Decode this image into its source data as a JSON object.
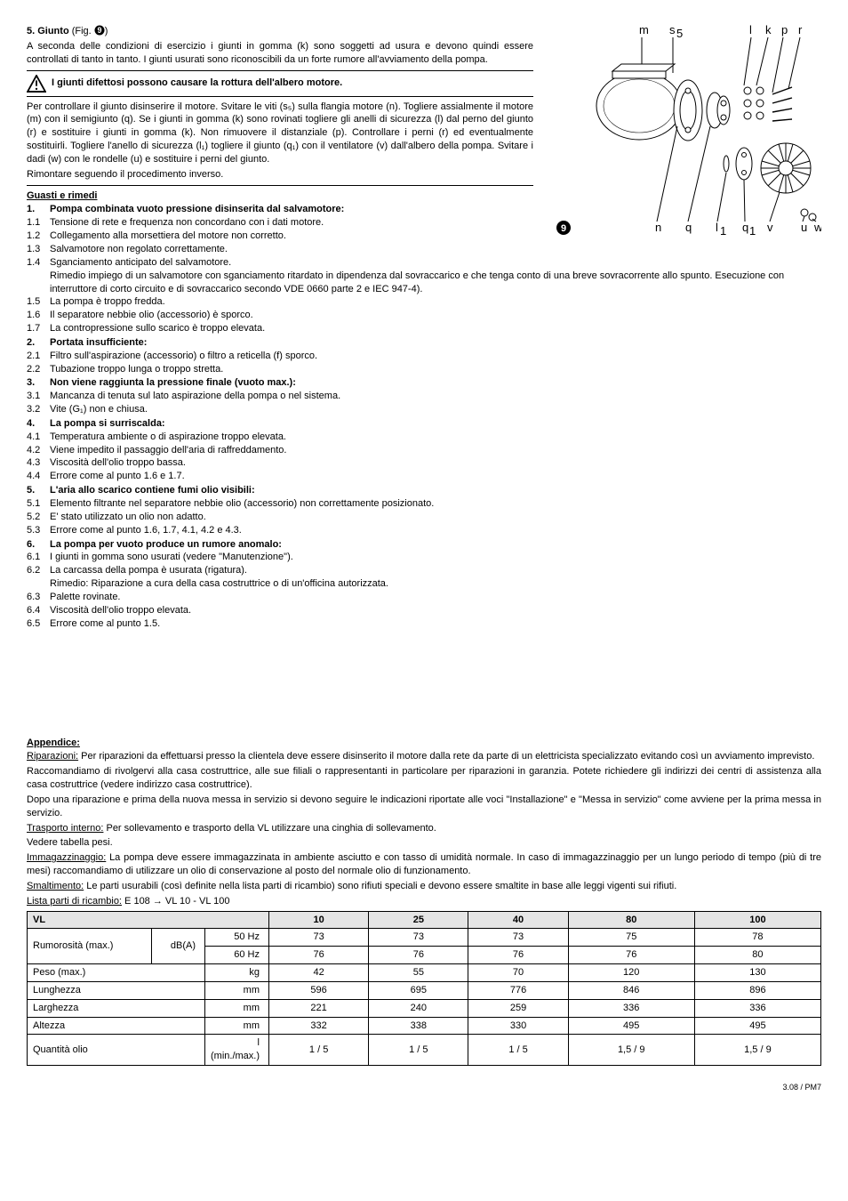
{
  "section5": {
    "title_prefix": "5. Giunto",
    "title_suffix": " (Fig. ",
    "fig_ref": "9",
    "title_close": ")",
    "p1": "A seconda delle condizioni di esercizio i giunti in gomma (k) sono soggetti ad usura e devono quindi essere controllati di tanto in tanto. I giunti usurati sono riconoscibili da un forte rumore all'avviamento della pompa.",
    "warn": "I giunti difettosi possono causare la rottura dell'albero motore.",
    "p2": "Per controllare il giunto disinserire il motore. Svitare le viti (s₅) sulla flangia motore (n). Togliere assialmente il motore (m) con il semigiunto (q). Se i giunti in gomma (k) sono rovinati togliere gli anelli di sicurezza (l) dal perno del giunto (r) e sostituire i giunti in gomma (k). Non rimuovere il distanziale (p). Controllare i perni (r) ed eventualmente sostituirli. Togliere l'anello di sicurezza (l₁) togliere il giunto (q₁) con il ventilatore (v) dall'albero della pompa. Svitare i dadi (w) con le rondelle (u) e sostituire i perni del giunto.",
    "p3": "Rimontare seguendo il procedimento inverso."
  },
  "guasti": {
    "head": "Guasti e rimedi",
    "items": [
      {
        "n": "1.",
        "t": "Pompa combinata vuoto pressione disinserita dal salvamotore:",
        "b": true
      },
      {
        "n": "1.1",
        "t": "Tensione di rete e frequenza non concordano con i dati motore."
      },
      {
        "n": "1.2",
        "t": "Collegamento alla morsettiera del motore non corretto."
      },
      {
        "n": "1.3",
        "t": "Salvamotore non regolato correttamente."
      },
      {
        "n": "1.4",
        "t": "Sganciamento anticipato del salvamotore."
      },
      {
        "n": "",
        "t": "Rimedio impiego di un salvamotore con sganciamento ritardato in dipendenza dal sovraccarico e che tenga conto di una breve sovracorrente allo spunto. Esecuzione con interruttore di corto circuito e di sovraccarico secondo VDE 0660 parte 2 e IEC 947-4)."
      },
      {
        "n": "1.5",
        "t": "La pompa è troppo fredda."
      },
      {
        "n": "1.6",
        "t": "Il separatore nebbie olio (accessorio) è sporco."
      },
      {
        "n": "1.7",
        "t": "La contropressione sullo scarico è troppo elevata."
      },
      {
        "n": "2.",
        "t": "Portata insufficiente:",
        "b": true
      },
      {
        "n": "2.1",
        "t": "Filtro sull'aspirazione (accessorio) o filtro a reticella (f) sporco."
      },
      {
        "n": "2.2",
        "t": "Tubazione troppo lunga o troppo stretta."
      },
      {
        "n": "3.",
        "t": "Non viene raggiunta la pressione finale (vuoto max.):",
        "b": true
      },
      {
        "n": "3.1",
        "t": "Mancanza di tenuta sul lato aspirazione della pompa o nel sistema."
      },
      {
        "n": "3.2",
        "t": "Vite (G₁) non e chiusa."
      },
      {
        "n": "4.",
        "t": "La pompa si surriscalda:",
        "b": true
      },
      {
        "n": "4.1",
        "t": "Temperatura ambiente o di aspirazione troppo elevata."
      },
      {
        "n": "4.2",
        "t": "Viene impedito il passaggio dell'aria di raffreddamento."
      },
      {
        "n": "4.3",
        "t": "Viscosità dell'olio troppo bassa."
      },
      {
        "n": "4.4",
        "t": "Errore come al punto 1.6 e 1.7."
      },
      {
        "n": "5.",
        "t": "L'aria allo scarico contiene fumi olio visibili:",
        "b": true
      },
      {
        "n": "5.1",
        "t": "Elemento filtrante nel separatore nebbie olio (accessorio) non correttamente posizionato."
      },
      {
        "n": "5.2",
        "t": "E' stato utilizzato un olio non adatto."
      },
      {
        "n": "5.3",
        "t": "Errore come al punto 1.6, 1.7, 4.1, 4.2 e 4.3."
      },
      {
        "n": "6.",
        "t": "La pompa per vuoto produce un rumore anomalo:",
        "b": true
      },
      {
        "n": "6.1",
        "t": "I giunti in gomma sono usurati (vedere \"Manutenzione\")."
      },
      {
        "n": "6.2",
        "t": "La carcassa della pompa è usurata (rigatura)."
      },
      {
        "n": "",
        "t": "Rimedio: Riparazione a cura della casa costruttrice o di un'officina autorizzata."
      },
      {
        "n": "6.3",
        "t": "Palette rovinate."
      },
      {
        "n": "6.4",
        "t": "Viscosità dell'olio troppo elevata."
      },
      {
        "n": "6.5",
        "t": "Errore come al punto 1.5."
      }
    ]
  },
  "appendix": {
    "head": "Appendice:",
    "rip_lbl": "Riparazioni:",
    "rip_t1": "  Per riparazioni da effettuarsi presso la clientela deve essere disinserito il motore dalla rete da parte di un elettricista specializzato evitando così un avviamento imprevisto.",
    "rip_t2": "Raccomandiamo di rivolgervi alla casa costruttrice, alle sue filiali o rappresentanti in particolare per riparazioni in garanzia. Potete richiedere gli indirizzi dei centri di assistenza alla casa costruttrice (vedere indirizzo casa costruttrice).",
    "rip_t3": "Dopo una riparazione e prima della nuova messa in servizio si devono seguire le indicazioni riportate alle voci \"Installazione\" e \"Messa in servizio\" come avviene per la prima messa in servizio.",
    "tra_lbl": "Trasporto interno:",
    "tra_t1": "  Per sollevamento e trasporto della VL utilizzare una cinghia di sollevamento.",
    "tra_t2": "Vedere tabella pesi.",
    "imm_lbl": "Immagazzinaggio:",
    "imm_t": "  La pompa deve essere immagazzinata in ambiente asciutto e con tasso di umidità normale. In caso di immagazzinaggio per un lungo periodo di tempo (più di tre mesi) raccomandiamo di utilizzare un olio di conservazione al posto del normale olio di funzionamento.",
    "sma_lbl": "Smaltimento:",
    "sma_t": "  Le parti usurabili (così definite nella lista parti di ricambio) sono rifiuti speciali e devono essere smaltite in base alle leggi vigenti sui rifiuti.",
    "lis_lbl": "Lista parti di ricambio:",
    "lis_t": "    E 108          →          VL 10  -  VL 100"
  },
  "table": {
    "head": [
      "VL",
      "",
      "10",
      "25",
      "40",
      "80",
      "100"
    ],
    "rows": [
      {
        "lbl": "Rumorosità (max.)",
        "unit": "dB(A)",
        "sub1": "50 Hz",
        "sub2": "60 Hz",
        "v1": [
          "73",
          "73",
          "73",
          "75",
          "78"
        ],
        "v2": [
          "76",
          "76",
          "76",
          "76",
          "80"
        ],
        "rowspan": true
      },
      {
        "lbl": "Peso (max.)",
        "unit": "kg",
        "v": [
          "42",
          "55",
          "70",
          "120",
          "130"
        ]
      },
      {
        "lbl": "Lunghezza",
        "unit": "mm",
        "v": [
          "596",
          "695",
          "776",
          "846",
          "896"
        ]
      },
      {
        "lbl": "Larghezza",
        "unit": "mm",
        "v": [
          "221",
          "240",
          "259",
          "336",
          "336"
        ]
      },
      {
        "lbl": "Altezza",
        "unit": "mm",
        "v": [
          "332",
          "338",
          "330",
          "495",
          "495"
        ]
      },
      {
        "lbl": "Quantità olio",
        "unit": "l (min./max.)",
        "v": [
          "1 / 5",
          "1 / 5",
          "1 / 5",
          "1,5 / 9",
          "1,5 / 9"
        ]
      }
    ]
  },
  "figure": {
    "labels": {
      "m": "m",
      "s5": "s",
      "l": "l",
      "k": "k",
      "p": "p",
      "r": "r",
      "n": "n",
      "q": "q",
      "l1": "l",
      "q1": "q",
      "v": "v",
      "u": "u",
      "w": "w"
    },
    "num": "9"
  },
  "footer": "3.08 / PM7"
}
